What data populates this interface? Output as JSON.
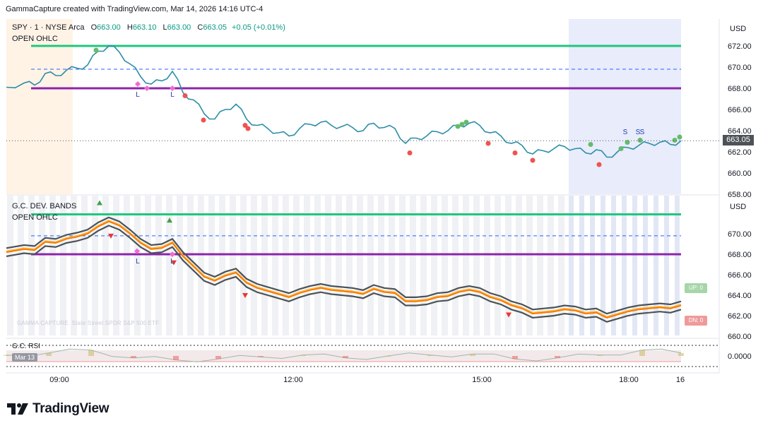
{
  "header": {
    "caption": "GammaCapture created with TradingView.com, Mar 14, 2026 14:16 UTC-4"
  },
  "legend": {
    "symbol": "SPY · 1 · NYSE Arca",
    "o_label": "O",
    "o_value": "663.00",
    "h_label": "H",
    "h_value": "663.10",
    "l_label": "L",
    "l_value": "663.00",
    "c_label": "C",
    "c_value": "663.05",
    "change": "+0.05 (+0.01%)"
  },
  "labels": {
    "open_ohlc_top": "OPEN OHLC",
    "dev_bands": "G.C. DEV. BANDS",
    "open_ohlc_bottom": "OPEN OHLC",
    "rsi": "G.C. RSI",
    "rsi_date": "Mar 13",
    "watermark": "GAMMA CAPTURE. State Street SPDR S&P 500 ETF",
    "currency": "USD",
    "last_price": "663.05",
    "up_badge": "UP: 0",
    "dn_badge": "DN: 0",
    "marker_L": "L",
    "marker_S": "S",
    "rsi_zero": "0.0000"
  },
  "brand": {
    "name": "TradingView"
  },
  "colors": {
    "price_line": "#2b8ea6",
    "level_high": "#1fc77e",
    "level_low": "#8e24aa",
    "level_mid": "#2962ff",
    "band_outer": "#4a5359",
    "band_mid": "#f57c00",
    "buy_dot": "#66bb6a",
    "sell_dot": "#ef5350",
    "session_pre": "#fff3e6",
    "session_post": "#e8ecfb"
  },
  "chart_data": [
    {
      "type": "line",
      "title": "SPY · 1 · NYSE Arca",
      "xlabel": "",
      "ylabel": "USD",
      "ylim": [
        658,
        673.5
      ],
      "y_ticks": [
        "672.00",
        "670.00",
        "668.00",
        "666.00",
        "664.00",
        "662.00",
        "660.00",
        "658.00"
      ],
      "x_ticks": [
        "09:00",
        "12:00",
        "15:00",
        "18:00",
        "16"
      ],
      "levels": [
        {
          "name": "OPEN OHLC high",
          "value": 672.0
        },
        {
          "name": "OPEN OHLC mid",
          "value": 669.8
        },
        {
          "name": "OPEN OHLC low",
          "value": 668.0
        }
      ],
      "x": [
        0,
        25,
        40,
        55,
        70,
        85,
        100,
        115,
        130,
        145,
        160,
        175,
        190,
        205,
        220,
        235,
        250,
        265,
        280,
        295,
        310,
        325,
        340,
        355,
        370,
        385,
        400,
        415,
        430,
        445,
        460,
        475,
        490,
        505,
        520,
        535,
        550,
        565,
        580,
        595,
        610,
        625,
        640,
        655,
        670,
        685,
        700,
        715,
        730,
        745,
        760,
        775,
        790,
        805,
        820,
        835,
        850,
        865,
        880,
        895,
        910,
        925,
        940,
        955
      ],
      "series": [
        {
          "values": [
            668.1,
            668.5,
            668.3,
            669.4,
            669.2,
            669.7,
            669.9,
            670.2,
            671.5,
            672.0,
            671.4,
            670.3,
            669.1,
            668.4,
            668.7,
            669.6,
            667.6,
            666.9,
            665.6,
            665.1,
            666.0,
            666.5,
            665.1,
            664.5,
            664.2,
            663.8,
            663.5,
            664.2,
            664.6,
            664.8,
            664.5,
            664.4,
            664.3,
            664.0,
            664.7,
            664.3,
            664.2,
            662.8,
            663.3,
            663.5,
            663.9,
            664.0,
            664.5,
            664.7,
            664.5,
            663.8,
            663.5,
            662.8,
            662.6,
            661.8,
            662.1,
            662.3,
            662.5,
            662.3,
            661.9,
            662.2,
            661.5,
            662.0,
            662.4,
            662.6,
            662.8,
            662.9,
            662.7,
            663.05
          ]
        }
      ],
      "markers": [
        {
          "label": "L",
          "x": 195,
          "value": 667.9
        },
        {
          "label": "L",
          "x": 244,
          "value": 667.9
        },
        {
          "label": "S",
          "x": 885,
          "value": 664.1
        },
        {
          "label": "S",
          "x": 903,
          "value": 664.3
        },
        {
          "label": "S",
          "x": 909,
          "value": 664.4
        }
      ]
    },
    {
      "type": "line",
      "title": "G.C. DEV. BANDS",
      "xlabel": "",
      "ylabel": "USD",
      "ylim": [
        659.8,
        673
      ],
      "y_ticks": [
        "670.00",
        "668.00",
        "666.00",
        "664.00",
        "662.00",
        "660.00"
      ],
      "levels": [
        {
          "name": "OPEN OHLC high",
          "value": 671.9
        },
        {
          "name": "OPEN OHLC mid",
          "value": 669.8
        },
        {
          "name": "OPEN OHLC low",
          "value": 668.0
        }
      ],
      "band_width": 0.8,
      "x": [
        0,
        25,
        40,
        55,
        70,
        85,
        100,
        115,
        130,
        145,
        160,
        175,
        190,
        205,
        220,
        235,
        250,
        265,
        280,
        295,
        310,
        325,
        340,
        355,
        370,
        385,
        400,
        415,
        430,
        445,
        460,
        475,
        490,
        505,
        520,
        535,
        550,
        565,
        580,
        595,
        610,
        625,
        640,
        655,
        670,
        685,
        700,
        715,
        730,
        745,
        760,
        775,
        790,
        805,
        820,
        835,
        850,
        865,
        880,
        895,
        910,
        925,
        940,
        955
      ],
      "series": [
        {
          "name": "UP",
          "values": [
            668.6,
            668.9,
            668.8,
            669.6,
            669.5,
            669.9,
            670.1,
            670.4,
            671.1,
            671.6,
            671.2,
            670.4,
            669.5,
            668.9,
            669.0,
            669.5,
            668.2,
            667.2,
            666.2,
            665.8,
            666.3,
            666.6,
            665.6,
            665.1,
            664.8,
            664.5,
            664.2,
            664.6,
            664.9,
            665.1,
            664.9,
            664.8,
            664.7,
            664.5,
            665.0,
            664.7,
            664.6,
            663.8,
            663.8,
            663.9,
            664.2,
            664.3,
            664.7,
            664.9,
            664.7,
            664.2,
            663.9,
            663.4,
            663.1,
            662.6,
            662.7,
            662.8,
            663.0,
            662.9,
            662.6,
            662.7,
            662.2,
            662.5,
            662.8,
            663.0,
            663.1,
            663.2,
            663.1,
            663.4
          ]
        },
        {
          "name": "MID",
          "values": [
            668.2,
            668.5,
            668.4,
            669.2,
            669.1,
            669.5,
            669.7,
            670.0,
            670.7,
            671.2,
            670.8,
            670.0,
            669.1,
            668.5,
            668.6,
            669.1,
            667.8,
            666.8,
            665.8,
            665.4,
            665.9,
            666.2,
            665.2,
            664.7,
            664.4,
            664.1,
            663.8,
            664.2,
            664.5,
            664.7,
            664.5,
            664.4,
            664.3,
            664.1,
            664.6,
            664.3,
            664.2,
            663.4,
            663.4,
            663.5,
            663.8,
            663.9,
            664.3,
            664.5,
            664.3,
            663.8,
            663.5,
            663.0,
            662.7,
            662.2,
            662.3,
            662.4,
            662.6,
            662.5,
            662.2,
            662.3,
            661.8,
            662.1,
            662.4,
            662.6,
            662.7,
            662.8,
            662.7,
            663.0
          ]
        },
        {
          "name": "DN",
          "values": [
            667.8,
            668.1,
            668.0,
            668.8,
            668.7,
            669.1,
            669.3,
            669.6,
            670.3,
            670.8,
            670.4,
            669.6,
            668.7,
            668.1,
            668.2,
            668.7,
            667.4,
            666.4,
            665.4,
            665.0,
            665.5,
            665.8,
            664.8,
            664.3,
            664.0,
            663.7,
            663.4,
            663.8,
            664.1,
            664.3,
            664.1,
            664.0,
            663.9,
            663.7,
            664.2,
            663.9,
            663.8,
            663.0,
            663.0,
            663.1,
            663.4,
            663.5,
            663.9,
            664.1,
            663.9,
            663.4,
            663.1,
            662.6,
            662.3,
            661.8,
            661.9,
            662.0,
            662.2,
            662.1,
            661.8,
            661.9,
            661.4,
            661.7,
            662.0,
            662.2,
            662.3,
            662.4,
            662.3,
            662.6
          ]
        }
      ],
      "markers": [
        {
          "label": "L",
          "x": 195,
          "value": 668.0
        },
        {
          "label": "L",
          "x": 244,
          "value": 667.7
        }
      ]
    },
    {
      "type": "area",
      "title": "G.C. RSI",
      "y_ticks": [
        "0.0000"
      ],
      "x": [
        0,
        60,
        120,
        180,
        240,
        300,
        360,
        420,
        480,
        540,
        600,
        660,
        720,
        780,
        840,
        900,
        955
      ],
      "values": [
        0.1,
        0.3,
        0.6,
        -0.2,
        -0.4,
        -0.3,
        -0.1,
        0.1,
        -0.2,
        0.0,
        0.1,
        0.2,
        -0.3,
        -0.2,
        0.1,
        0.6,
        0.3
      ]
    }
  ]
}
